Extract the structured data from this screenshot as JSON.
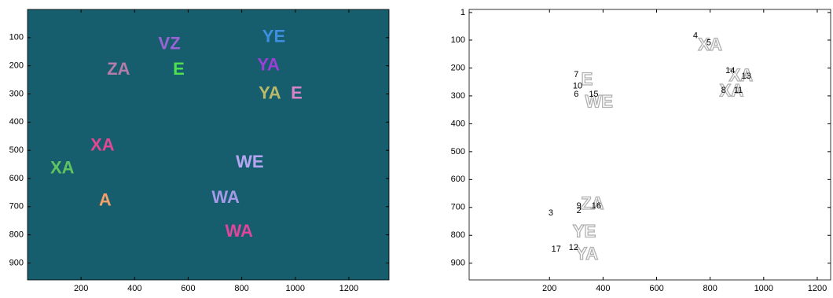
{
  "chart_data": [
    {
      "type": "image",
      "background": "#165d6d",
      "xlim": [
        0,
        1350
      ],
      "ylim": [
        960,
        0
      ],
      "xticks": [
        200,
        400,
        600,
        800,
        1000,
        1200
      ],
      "yticks": [
        100,
        200,
        300,
        400,
        500,
        600,
        700,
        800,
        900
      ],
      "items": [
        {
          "text": "YE",
          "x": 920,
          "y": 100,
          "color": "#3f8fe0"
        },
        {
          "text": "VZ",
          "x": 530,
          "y": 125,
          "color": "#9a63d6"
        },
        {
          "text": "YA",
          "x": 900,
          "y": 200,
          "color": "#9b3fd8"
        },
        {
          "text": "ZA",
          "x": 340,
          "y": 215,
          "color": "#b47ca8"
        },
        {
          "text": "YA",
          "x": 905,
          "y": 300,
          "color": "#b9b96a"
        },
        {
          "text": "E",
          "x": 1005,
          "y": 300,
          "color": "#d884c8"
        },
        {
          "text": "XA",
          "x": 280,
          "y": 485,
          "color": "#e04894"
        },
        {
          "text": "WE",
          "x": 830,
          "y": 545,
          "color": "#b6a6f2"
        },
        {
          "text": "WA",
          "x": 740,
          "y": 670,
          "color": "#a49ae8"
        },
        {
          "text": "WA",
          "x": 790,
          "y": 790,
          "color": "#e2459c"
        },
        {
          "text": "A",
          "x": 290,
          "y": 680,
          "color": "#f3a06b"
        },
        {
          "text": "XA",
          "x": 130,
          "y": 565,
          "color": "#5fc45f"
        },
        {
          "text": "E",
          "x": 565,
          "y": 215,
          "color": "#4ee04e"
        }
      ]
    },
    {
      "type": "outline",
      "background": "#ffffff",
      "xlim": [
        -100,
        1250
      ],
      "ylim": [
        960,
        -10
      ],
      "xticks": [
        200,
        400,
        600,
        800,
        1000,
        1200
      ],
      "yticks": [
        1,
        100,
        200,
        300,
        400,
        500,
        600,
        700,
        800,
        900
      ],
      "letters": [
        {
          "text": "XA",
          "x": 800,
          "y": 120
        },
        {
          "text": "XA",
          "x": 915,
          "y": 230
        },
        {
          "text": "XA",
          "x": 880,
          "y": 285
        },
        {
          "text": "E",
          "x": 340,
          "y": 245
        },
        {
          "text": "WE",
          "x": 385,
          "y": 325
        },
        {
          "text": "ZA",
          "x": 360,
          "y": 690
        },
        {
          "text": "YE",
          "x": 330,
          "y": 790
        },
        {
          "text": "YA",
          "x": 340,
          "y": 870
        }
      ],
      "labels": [
        {
          "text": "4",
          "x": 745,
          "y": 85
        },
        {
          "text": "5",
          "x": 795,
          "y": 110
        },
        {
          "text": "14",
          "x": 875,
          "y": 210
        },
        {
          "text": "13",
          "x": 935,
          "y": 230
        },
        {
          "text": "8",
          "x": 850,
          "y": 280
        },
        {
          "text": "11",
          "x": 905,
          "y": 280
        },
        {
          "text": "7",
          "x": 300,
          "y": 225
        },
        {
          "text": "10",
          "x": 305,
          "y": 265
        },
        {
          "text": "6",
          "x": 300,
          "y": 295
        },
        {
          "text": "15",
          "x": 365,
          "y": 295
        },
        {
          "text": "9",
          "x": 310,
          "y": 695
        },
        {
          "text": "2",
          "x": 310,
          "y": 712
        },
        {
          "text": "16",
          "x": 375,
          "y": 695
        },
        {
          "text": "3",
          "x": 205,
          "y": 720
        },
        {
          "text": "17",
          "x": 225,
          "y": 850
        },
        {
          "text": "12",
          "x": 290,
          "y": 845
        }
      ]
    }
  ]
}
